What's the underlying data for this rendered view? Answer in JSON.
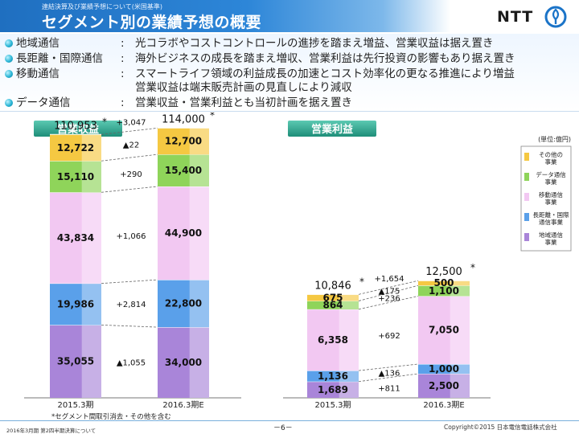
{
  "header": {
    "subtitle": "連結決算及び業績予想について(米国基準)",
    "title": "セグメント別の業績予想の概要",
    "logo_text": "NTT"
  },
  "bullets": [
    {
      "category": "地域通信",
      "colon": ":",
      "text": "光コラボやコストコントロールの進捗を踏まえ増益、営業収益は据え置き"
    },
    {
      "category": "長距離・国際通信",
      "colon": ":",
      "text": "海外ビジネスの成長を踏まえ増収、営業利益は先行投資の影響もあり据え置き"
    },
    {
      "category": "移動通信",
      "colon": ":",
      "text": "スマートライフ領域の利益成長の加速とコスト効率化の更なる推進により増益",
      "text2": "営業収益は端末販売計画の見直しにより減収"
    },
    {
      "category": "データ通信",
      "colon": ":",
      "text": "営業収益・営業利益とも当初計画を据え置き"
    }
  ],
  "unit_label": "(単位:億円)",
  "legend": [
    {
      "label": "その他の\n事業",
      "color": "#f5c842"
    },
    {
      "label": "データ通信\n事業",
      "color": "#8fd45a"
    },
    {
      "label": "移動通信\n事業",
      "color": "#f2c8f2"
    },
    {
      "label": "長距離・国際\n通信事業",
      "color": "#5aa0ea"
    },
    {
      "label": "地域通信\n事業",
      "color": "#a985d9"
    }
  ],
  "colors": {
    "other": "#f5c842",
    "data": "#8fd45a",
    "mobile": "#f2c8f2",
    "longdist": "#5aa0ea",
    "regional": "#a985d9",
    "badge_bg": "#2f9f8a"
  },
  "chart_data": [
    {
      "type": "bar",
      "title": "営業収益",
      "categories": [
        "2015.3期",
        "2016.3期E"
      ],
      "series": [
        {
          "name": "地域通信事業",
          "values": [
            35055,
            34000
          ],
          "labels": [
            "35,055",
            "34,000"
          ]
        },
        {
          "name": "長距離・国際通信事業",
          "values": [
            19986,
            22800
          ],
          "labels": [
            "19,986",
            "22,800"
          ]
        },
        {
          "name": "移動通信事業",
          "values": [
            43834,
            44900
          ],
          "labels": [
            "43,834",
            "44,900"
          ]
        },
        {
          "name": "データ通信事業",
          "values": [
            15110,
            15400
          ],
          "labels": [
            "15,110",
            "15,400"
          ]
        },
        {
          "name": "その他の事業",
          "values": [
            12722,
            12700
          ],
          "labels": [
            "12,722",
            "12,700"
          ]
        }
      ],
      "totals": [
        "110,953",
        "114,000"
      ],
      "total_mark": "*",
      "changes": [
        "▲1,055",
        "+2,814",
        "+1,066",
        "+290",
        "▲22"
      ],
      "total_change": "+3,047"
    },
    {
      "type": "bar",
      "title": "営業利益",
      "categories": [
        "2015.3期",
        "2016.3期E"
      ],
      "series": [
        {
          "name": "地域通信事業",
          "values": [
            1689,
            2500
          ],
          "labels": [
            "1,689",
            "2,500"
          ]
        },
        {
          "name": "長距離・国際通信事業",
          "values": [
            1136,
            1000
          ],
          "labels": [
            "1,136",
            "1,000"
          ]
        },
        {
          "name": "移動通信事業",
          "values": [
            6358,
            7050
          ],
          "labels": [
            "6,358",
            "7,050"
          ]
        },
        {
          "name": "データ通信事業",
          "values": [
            864,
            1100
          ],
          "labels": [
            "864",
            "1,100"
          ]
        },
        {
          "name": "その他の事業",
          "values": [
            675,
            500
          ],
          "labels": [
            "675",
            "500"
          ]
        }
      ],
      "totals": [
        "10,846",
        "12,500"
      ],
      "total_mark": "*",
      "changes": [
        "+811",
        "▲136",
        "+692",
        "+236",
        "▲175"
      ],
      "total_change": "+1,654"
    }
  ],
  "footnote": "*セグメント間取引消去・その他を含む",
  "footer": {
    "left": "2016年3月期 第2四半期決算について",
    "page": "－6－",
    "copyright": "Copyright©2015 日本電信電話株式会社"
  }
}
